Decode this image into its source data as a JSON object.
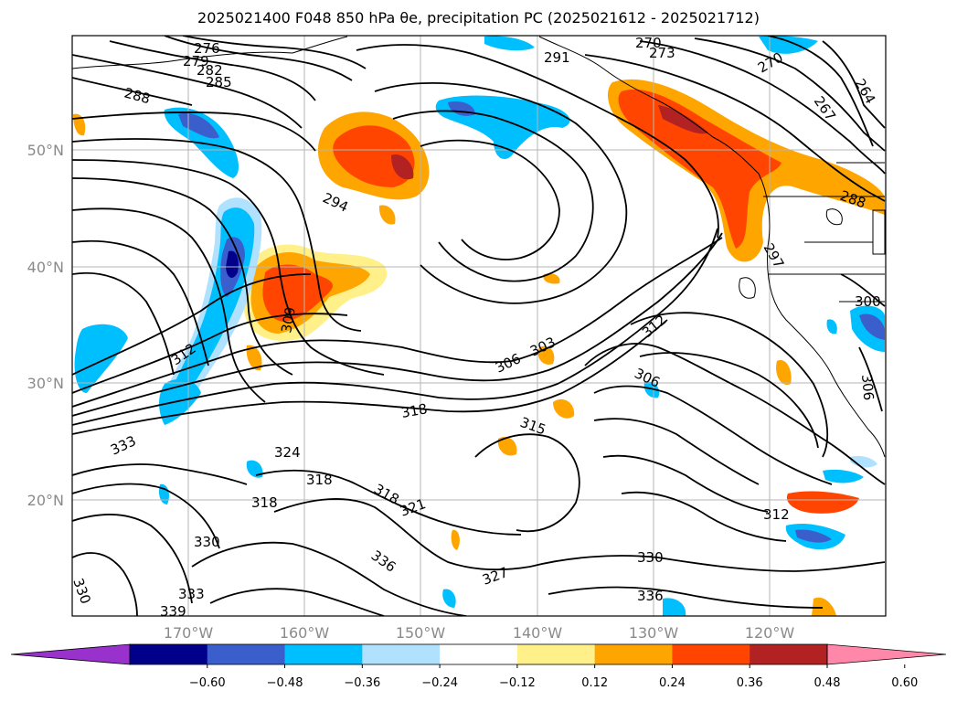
{
  "title": "2025021400 F048 850 hPa θe, precipitation PC (2025021612 - 2025021712)",
  "lat_ticks": [
    "50°N",
    "40°N",
    "30°N",
    "20°N"
  ],
  "lon_ticks": [
    "170°W",
    "160°W",
    "150°W",
    "140°W",
    "130°W",
    "120°W"
  ],
  "colorbar": {
    "ticks": [
      "−0.60",
      "−0.48",
      "−0.36",
      "−0.24",
      "−0.12",
      "0.12",
      "0.24",
      "0.36",
      "0.48",
      "0.60"
    ],
    "colors": [
      "#9932cc",
      "#00008b",
      "#3a5fcd",
      "#00bfff",
      "#b0e2ff",
      "#ffffff",
      "#fff08a",
      "#ffa500",
      "#ff4500",
      "#b22222",
      "#ff88aa"
    ]
  },
  "contour_labels": [
    "276",
    "279",
    "282",
    "285",
    "288",
    "291",
    "270",
    "273",
    "270",
    "264",
    "267",
    "288",
    "294",
    "297",
    "300",
    "303",
    "306",
    "309",
    "312",
    "312",
    "306",
    "306",
    "315",
    "318",
    "318",
    "318",
    "318",
    "321",
    "324",
    "327",
    "330",
    "330",
    "330",
    "333",
    "333",
    "336",
    "336",
    "339",
    "312"
  ]
}
